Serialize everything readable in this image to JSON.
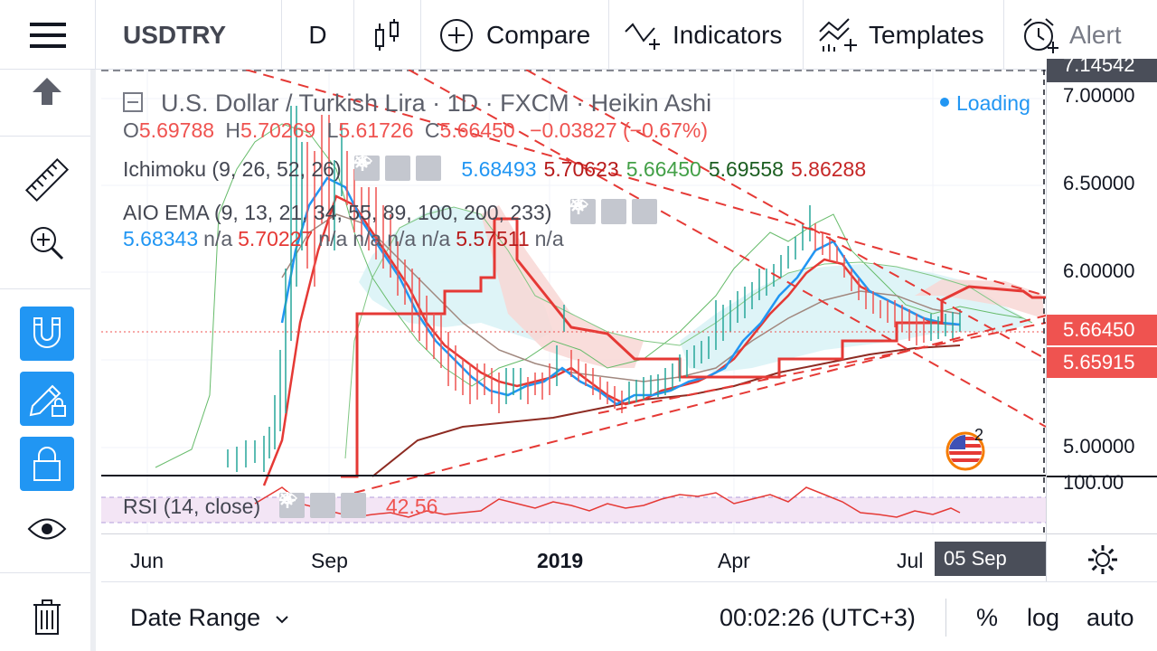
{
  "toolbar": {
    "symbol": "USDTRY",
    "interval": "D",
    "compare_label": "Compare",
    "indicators_label": "Indicators",
    "templates_label": "Templates",
    "alert_label": "Alert"
  },
  "legend": {
    "title": "U.S. Dollar / Turkish Lira · 1D · FXCM · Heikin Ashi",
    "loading": "Loading",
    "ohlc": {
      "o_label": "O",
      "o": "5.69788",
      "h_label": "H",
      "h": "5.70269",
      "l_label": "L",
      "l": "5.61726",
      "c_label": "C",
      "c": "5.66450",
      "change": "−0.03827 (−0.67%)"
    },
    "ichimoku": {
      "name": "Ichimoku (9, 26, 52, 26)",
      "values": [
        "5.68493",
        "5.70623",
        "5.66450",
        "5.69558",
        "5.86288"
      ],
      "colors": [
        "#2196f3",
        "#b71c1c",
        "#43a047",
        "#1b5e20",
        "#c62828"
      ]
    },
    "ema": {
      "name": "AIO EMA (9, 13, 21, 34, 55, 89, 100, 200, 233)",
      "values": [
        "5.68343",
        "n/a",
        "5.70227",
        "n/a",
        "n/a",
        "n/a",
        "n/a",
        "5.57511",
        "n/a"
      ],
      "colors": [
        "#2196f3",
        "#5d606b",
        "#e53935",
        "#5d606b",
        "#5d606b",
        "#5d606b",
        "#5d606b",
        "#b71c1c",
        "#5d606b"
      ]
    },
    "rsi": {
      "name": "RSI (14, close)",
      "value": "42.56"
    }
  },
  "price_scale": {
    "top_label": "7.14542",
    "labels": [
      "7.00000",
      "6.50000",
      "6.00000",
      "5.00000"
    ],
    "current_price": "5.66450",
    "second_price": "5.65915",
    "rsi_label": "100.00"
  },
  "time_axis": {
    "labels": [
      "Jun",
      "Sep",
      "2019",
      "Apr",
      "Jul"
    ],
    "cursor_date": "05 Sep '19"
  },
  "bottom": {
    "date_range": "Date Range",
    "clock": "00:02:26 (UTC+3)",
    "percent": "%",
    "log": "log",
    "auto": "auto"
  },
  "flag_badge_count": "2",
  "colors": {
    "accent": "#2196f3",
    "down": "#ef5350",
    "up": "#26a69a",
    "cloud_up": "#d8f2f6",
    "cloud_down": "#f8d7d5"
  }
}
